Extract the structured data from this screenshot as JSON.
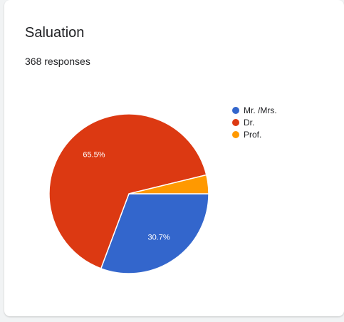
{
  "card": {
    "title": "Saluation",
    "responses": "368 responses"
  },
  "chart_data": {
    "type": "pie",
    "categories": [
      "Mr. /Mrs.",
      "Dr.",
      "Prof."
    ],
    "values": [
      30.7,
      65.5,
      3.8
    ],
    "data_labels": [
      "30.7%",
      "65.5%",
      ""
    ],
    "colors": [
      "#3366cc",
      "#dc3912",
      "#ff9900"
    ],
    "legend_position": "right"
  }
}
